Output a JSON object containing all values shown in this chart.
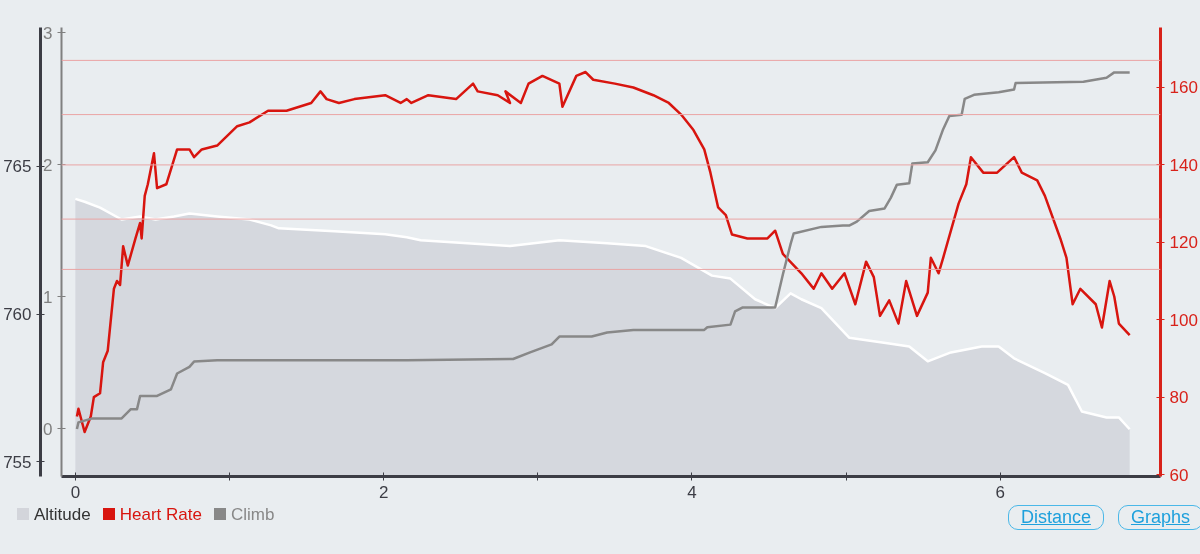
{
  "chart_data": {
    "type": "line",
    "xlim": [
      -0.09,
      7.04
    ],
    "xticks": [
      0,
      {
        "value": 1,
        "label": null
      },
      2,
      {
        "value": 3,
        "label": null
      },
      4,
      {
        "value": 5,
        "label": null
      },
      6
    ],
    "ylim": [
      754.5,
      769.7
    ],
    "yticks": [
      755,
      760,
      765
    ],
    "y2lim": [
      59.5,
      175.5
    ],
    "y2ticks": [
      60,
      80,
      100,
      120,
      140,
      160
    ],
    "y3lim": [
      -0.36,
      3.04
    ],
    "y3ticks": [
      0,
      1,
      2,
      3
    ],
    "grid": false,
    "legend": "bottom left",
    "series": [
      {
        "name": "Altitude",
        "type": "area",
        "axis": "y",
        "color": "#d3d5db",
        "x": [
          0.0,
          0.06,
          0.16,
          0.3,
          0.42,
          0.52,
          0.64,
          0.74,
          0.92,
          1.13,
          1.27,
          1.32,
          1.68,
          2.01,
          2.15,
          2.24,
          2.82,
          3.14,
          3.45,
          3.7,
          3.93,
          4.13,
          4.25,
          4.41,
          4.54,
          4.64,
          4.71,
          4.84,
          5.02,
          5.28,
          5.41,
          5.53,
          5.68,
          5.88,
          5.99,
          6.09,
          6.29,
          6.44,
          6.53,
          6.69,
          6.77,
          6.84
        ],
        "values": [
          763.9,
          763.8,
          763.6,
          763.2,
          763.3,
          763.2,
          763.3,
          763.4,
          763.3,
          763.2,
          763.0,
          762.9,
          762.8,
          762.7,
          762.6,
          762.5,
          762.3,
          762.5,
          762.4,
          762.3,
          761.9,
          761.3,
          761.2,
          760.5,
          760.2,
          760.7,
          760.5,
          760.2,
          759.2,
          759.0,
          758.9,
          758.4,
          758.7,
          758.9,
          758.9,
          758.5,
          758.0,
          757.6,
          756.7,
          756.5,
          756.5,
          756.1
        ]
      },
      {
        "name": "Heart Rate",
        "axis": "y2",
        "color": "#d8150f",
        "x": [
          0.01,
          0.02,
          0.06,
          0.1,
          0.12,
          0.16,
          0.18,
          0.21,
          0.25,
          0.27,
          0.29,
          0.31,
          0.34,
          0.39,
          0.42,
          0.43,
          0.45,
          0.47,
          0.51,
          0.53,
          0.59,
          0.66,
          0.74,
          0.77,
          0.82,
          0.92,
          1.05,
          1.13,
          1.25,
          1.37,
          1.53,
          1.59,
          1.63,
          1.71,
          1.81,
          2.01,
          2.11,
          2.15,
          2.18,
          2.29,
          2.47,
          2.58,
          2.61,
          2.74,
          2.82,
          2.79,
          2.89,
          2.94,
          3.03,
          3.14,
          3.16,
          3.25,
          3.31,
          3.36,
          3.5,
          3.62,
          3.75,
          3.85,
          3.93,
          4.01,
          4.08,
          4.12,
          4.17,
          4.22,
          4.26,
          4.36,
          4.49,
          4.54,
          4.59,
          4.71,
          4.77,
          4.79,
          4.84,
          4.91,
          4.99,
          5.06,
          5.13,
          5.18,
          5.22,
          5.28,
          5.34,
          5.39,
          5.46,
          5.53,
          5.55,
          5.6,
          5.63,
          5.73,
          5.78,
          5.81,
          5.89,
          5.98,
          6.09,
          6.14,
          6.24,
          6.29,
          6.39,
          6.43,
          6.47,
          6.52,
          6.62,
          6.66,
          6.71,
          6.74,
          6.77,
          6.84
        ],
        "values": [
          75,
          77,
          71,
          75,
          80,
          81,
          89,
          92,
          108,
          110,
          109,
          119,
          114,
          121,
          125,
          121,
          132,
          135,
          143,
          134,
          135,
          144,
          144,
          142,
          144,
          145,
          150,
          151,
          154,
          154,
          156,
          159,
          157,
          156,
          157,
          158,
          156,
          157,
          156,
          158,
          157,
          161,
          159,
          158,
          156,
          159,
          156,
          161,
          163,
          161,
          155,
          163,
          164,
          162,
          161,
          160,
          158,
          156,
          153,
          149,
          144,
          138,
          129,
          127,
          122,
          121,
          121,
          123,
          117,
          112,
          109,
          108,
          112,
          108,
          112,
          104,
          115,
          111,
          101,
          105,
          99,
          110,
          101,
          107,
          116,
          112,
          116,
          130,
          135,
          142,
          138,
          138,
          142,
          138,
          136,
          132,
          121,
          116,
          104,
          108,
          104,
          98,
          110,
          106,
          99,
          96
        ]
      },
      {
        "name": "Climb",
        "axis": "y3",
        "color": "#888888",
        "x": [
          0.01,
          0.02,
          0.11,
          0.3,
          0.36,
          0.4,
          0.42,
          0.53,
          0.62,
          0.66,
          0.74,
          0.77,
          0.92,
          2.15,
          2.84,
          2.95,
          3.09,
          3.14,
          3.35,
          3.45,
          3.62,
          4.08,
          4.1,
          4.25,
          4.28,
          4.33,
          4.54,
          4.59,
          4.64,
          4.66,
          4.84,
          4.98,
          5.02,
          5.07,
          5.15,
          5.25,
          5.29,
          5.33,
          5.41,
          5.43,
          5.53,
          5.58,
          5.63,
          5.67,
          5.75,
          5.77,
          5.83,
          5.99,
          6.09,
          6.1,
          6.54,
          6.69,
          6.74,
          6.84
        ],
        "values": [
          0.0,
          0.05,
          0.08,
          0.08,
          0.15,
          0.15,
          0.25,
          0.25,
          0.3,
          0.42,
          0.47,
          0.51,
          0.52,
          0.52,
          0.53,
          0.58,
          0.64,
          0.7,
          0.7,
          0.73,
          0.75,
          0.75,
          0.77,
          0.79,
          0.89,
          0.92,
          0.92,
          1.17,
          1.4,
          1.48,
          1.53,
          1.54,
          1.54,
          1.57,
          1.65,
          1.67,
          1.75,
          1.85,
          1.86,
          2.01,
          2.02,
          2.11,
          2.27,
          2.37,
          2.38,
          2.5,
          2.53,
          2.55,
          2.57,
          2.62,
          2.63,
          2.66,
          2.7,
          2.7
        ]
      }
    ],
    "ref_lines": [
      {
        "axis": "y2",
        "value": 167,
        "color": "#eaa4a4"
      },
      {
        "axis": "y2",
        "value": 153,
        "color": "#eaa4a4"
      },
      {
        "axis": "y2",
        "value": 140,
        "color": "#eaa4a4"
      },
      {
        "axis": "y2",
        "value": 126,
        "color": "#eaa4a4"
      },
      {
        "axis": "y2",
        "value": 113,
        "color": "#eaa4a4"
      }
    ],
    "annotations": [
      "Distance",
      "Graphs"
    ]
  }
}
